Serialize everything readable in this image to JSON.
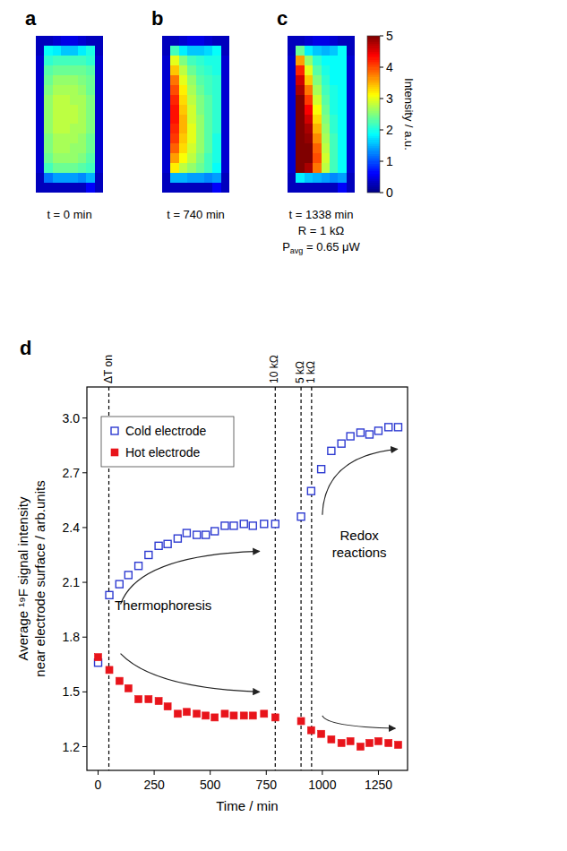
{
  "chart_data": [
    {
      "type": "heatmap",
      "panel_label": "a",
      "caption": [
        "t = 0 min"
      ],
      "cells": [
        [
          0.3,
          0.3,
          0.4,
          0.5,
          0.5,
          0.4,
          0.3,
          0.3
        ],
        [
          0.3,
          1.9,
          1.8,
          1.6,
          1.6,
          1.8,
          2.0,
          0.3
        ],
        [
          0.4,
          2.1,
          2.2,
          2.2,
          2.2,
          2.2,
          2.1,
          0.4
        ],
        [
          0.4,
          2.3,
          2.4,
          2.4,
          2.4,
          2.4,
          2.3,
          0.4
        ],
        [
          0.4,
          2.4,
          2.6,
          2.6,
          2.6,
          2.5,
          2.4,
          0.4
        ],
        [
          0.4,
          2.5,
          2.7,
          2.7,
          2.7,
          2.6,
          2.4,
          0.4
        ],
        [
          0.4,
          2.6,
          2.8,
          2.8,
          2.7,
          2.7,
          2.5,
          0.4
        ],
        [
          0.4,
          2.6,
          2.8,
          2.8,
          2.8,
          2.7,
          2.5,
          0.4
        ],
        [
          0.4,
          2.6,
          2.8,
          2.8,
          2.8,
          2.7,
          2.5,
          0.4
        ],
        [
          0.4,
          2.6,
          2.8,
          2.8,
          2.7,
          2.7,
          2.5,
          0.4
        ],
        [
          0.4,
          2.5,
          2.7,
          2.7,
          2.7,
          2.6,
          2.4,
          0.4
        ],
        [
          0.4,
          2.5,
          2.7,
          2.7,
          2.6,
          2.6,
          2.4,
          0.4
        ],
        [
          0.4,
          2.4,
          2.6,
          2.6,
          2.6,
          2.5,
          2.3,
          0.4
        ],
        [
          0.4,
          2.2,
          2.4,
          2.4,
          2.4,
          2.3,
          2.2,
          0.4
        ],
        [
          0.3,
          1.2,
          1.4,
          1.4,
          1.4,
          1.3,
          1.5,
          0.3
        ],
        [
          0.3,
          0.3,
          0.3,
          0.3,
          0.3,
          0.3,
          0.6,
          0.3
        ]
      ]
    },
    {
      "type": "heatmap",
      "panel_label": "b",
      "caption": [
        "t = 740 min"
      ],
      "cells": [
        [
          0.3,
          0.3,
          0.4,
          0.5,
          0.5,
          0.4,
          0.3,
          0.3
        ],
        [
          0.3,
          2.2,
          1.8,
          1.6,
          1.6,
          1.7,
          1.9,
          0.3
        ],
        [
          0.4,
          3.0,
          2.5,
          2.2,
          2.1,
          2.0,
          2.0,
          0.4
        ],
        [
          0.4,
          3.4,
          2.8,
          2.4,
          2.2,
          2.1,
          2.0,
          0.4
        ],
        [
          0.4,
          3.8,
          3.0,
          2.6,
          2.3,
          2.2,
          2.1,
          0.4
        ],
        [
          0.4,
          4.0,
          3.2,
          2.7,
          2.4,
          2.2,
          2.1,
          0.4
        ],
        [
          0.4,
          4.2,
          3.3,
          2.8,
          2.5,
          2.3,
          2.1,
          0.4
        ],
        [
          0.4,
          4.3,
          3.4,
          2.9,
          2.5,
          2.3,
          2.1,
          0.4
        ],
        [
          0.4,
          4.3,
          3.5,
          2.9,
          2.6,
          2.3,
          2.1,
          0.4
        ],
        [
          0.4,
          4.2,
          3.5,
          3.0,
          2.6,
          2.3,
          2.1,
          0.4
        ],
        [
          0.4,
          4.1,
          3.4,
          3.0,
          2.6,
          2.3,
          2.0,
          0.4
        ],
        [
          0.4,
          3.9,
          3.3,
          2.9,
          2.6,
          2.3,
          2.0,
          0.4
        ],
        [
          0.4,
          3.6,
          3.1,
          2.8,
          2.5,
          2.2,
          2.0,
          0.4
        ],
        [
          0.4,
          3.2,
          2.8,
          2.6,
          2.4,
          2.2,
          1.9,
          0.4
        ],
        [
          0.3,
          1.5,
          1.5,
          1.4,
          1.4,
          1.3,
          1.4,
          0.3
        ],
        [
          0.3,
          0.3,
          0.3,
          0.3,
          0.3,
          0.3,
          0.6,
          0.3
        ]
      ]
    },
    {
      "type": "heatmap",
      "panel_label": "c",
      "caption": [
        "t = 1338 min",
        "R = 1 kΩ",
        {
          "text": "P",
          "sub": "avg",
          "after": " = 0.65 μW"
        }
      ],
      "color_range": [
        0,
        5
      ],
      "color_ticks": [
        0,
        1,
        2,
        3,
        4,
        5
      ],
      "color_label": "Intensity / a.u.",
      "cells": [
        [
          0.3,
          0.3,
          0.4,
          0.5,
          0.5,
          0.4,
          0.3,
          0.3
        ],
        [
          0.3,
          2.4,
          1.8,
          1.6,
          1.5,
          1.6,
          1.9,
          0.3
        ],
        [
          0.4,
          3.6,
          2.6,
          2.1,
          1.9,
          1.9,
          1.9,
          0.4
        ],
        [
          0.4,
          4.2,
          3.0,
          2.3,
          2.0,
          1.9,
          1.9,
          0.4
        ],
        [
          0.4,
          4.6,
          3.4,
          2.5,
          2.1,
          1.9,
          1.9,
          0.4
        ],
        [
          0.4,
          4.8,
          3.8,
          2.7,
          2.2,
          2.0,
          1.9,
          0.4
        ],
        [
          0.4,
          5.0,
          4.1,
          2.9,
          2.3,
          2.0,
          1.9,
          0.4
        ],
        [
          0.4,
          5.0,
          4.4,
          3.1,
          2.4,
          2.0,
          1.9,
          0.4
        ],
        [
          0.4,
          5.0,
          4.6,
          3.3,
          2.5,
          2.1,
          1.9,
          0.4
        ],
        [
          0.4,
          5.0,
          4.8,
          3.5,
          2.6,
          2.1,
          1.9,
          0.4
        ],
        [
          0.4,
          5.0,
          4.9,
          3.7,
          2.7,
          2.2,
          1.9,
          0.4
        ],
        [
          0.4,
          5.0,
          5.0,
          3.9,
          2.8,
          2.2,
          1.9,
          0.4
        ],
        [
          0.4,
          5.0,
          5.0,
          4.0,
          2.9,
          2.2,
          1.9,
          0.4
        ],
        [
          0.4,
          5.0,
          4.8,
          3.8,
          2.8,
          2.2,
          1.9,
          0.4
        ],
        [
          0.3,
          1.8,
          1.6,
          1.5,
          1.4,
          1.3,
          1.4,
          0.3
        ],
        [
          0.3,
          0.3,
          0.3,
          0.3,
          0.3,
          0.3,
          0.6,
          0.3
        ]
      ]
    },
    {
      "type": "scatter",
      "panel_label": "d",
      "x_label": "Time / min",
      "y_label": [
        "Average ¹⁹F signal intensity",
        "near electrode surface / arb.units"
      ],
      "xlim": [
        -50,
        1380
      ],
      "xticks": [
        0,
        250,
        500,
        750,
        1000,
        1250
      ],
      "ylim": [
        1.07,
        3.17
      ],
      "yticks": [
        1.2,
        1.5,
        1.8,
        2.1,
        2.4,
        2.7,
        {
          "value": 3,
          "label": "3.0"
        }
      ],
      "grid": false,
      "legend": "upper left",
      "x": [
        0,
        50,
        95,
        135,
        180,
        225,
        270,
        310,
        355,
        395,
        440,
        480,
        520,
        565,
        605,
        650,
        690,
        740,
        790,
        905,
        950,
        995,
        1040,
        1085,
        1125,
        1170,
        1210,
        1250,
        1295,
        1338
      ],
      "series": [
        {
          "name": "Cold electrode",
          "color": "#2e3bd1",
          "marker": "open_square",
          "values": [
            1.66,
            2.03,
            2.09,
            2.14,
            2.19,
            2.25,
            2.3,
            2.31,
            2.34,
            2.37,
            2.36,
            2.36,
            2.38,
            2.41,
            2.41,
            2.42,
            2.41,
            2.42,
            2.42,
            2.46,
            2.6,
            2.72,
            2.82,
            2.86,
            2.9,
            2.92,
            2.91,
            2.93,
            2.95,
            2.95
          ]
        },
        {
          "name": "Hot electrode",
          "color": "#e8141b",
          "marker": "filled_square",
          "values": [
            1.69,
            1.62,
            1.56,
            1.52,
            1.46,
            1.46,
            1.45,
            1.42,
            1.38,
            1.39,
            1.38,
            1.37,
            1.36,
            1.38,
            1.37,
            1.37,
            1.37,
            1.38,
            1.36,
            1.34,
            1.29,
            1.27,
            1.24,
            1.22,
            1.23,
            1.2,
            1.22,
            1.23,
            1.22,
            1.21
          ]
        }
      ],
      "vlines": [
        {
          "x": 48,
          "label": "ΔT on"
        },
        {
          "x": 790,
          "label": "10 kΩ"
        },
        {
          "x": 905,
          "label": "5 kΩ"
        },
        {
          "x": 952,
          "label": "1 kΩ"
        }
      ],
      "annotations": [
        {
          "text": [
            "Thermophoresis"
          ],
          "x": 290,
          "y": 1.95
        },
        {
          "text": [
            "Redox",
            "reactions"
          ],
          "x": 1165,
          "y": 2.33
        }
      ]
    }
  ]
}
